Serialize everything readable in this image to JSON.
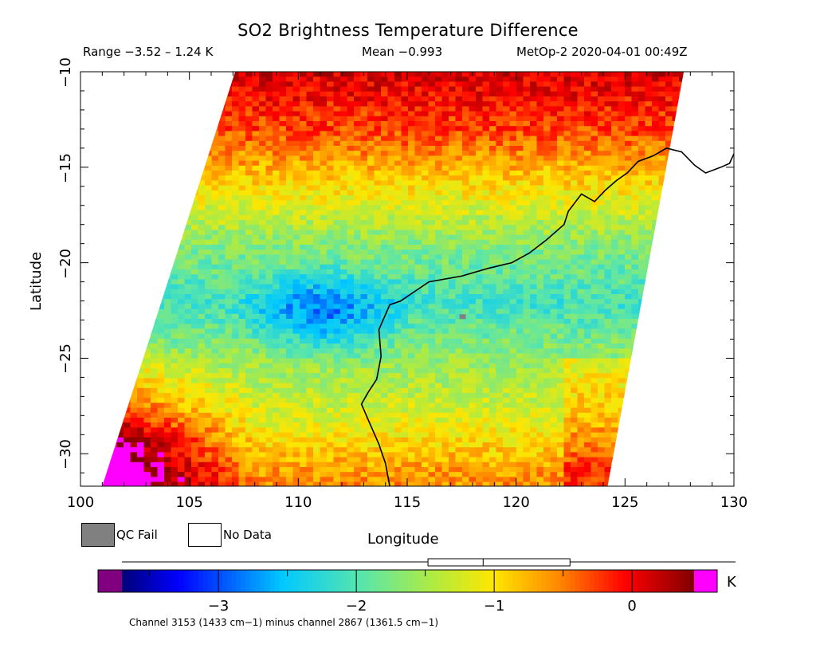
{
  "header": {
    "title": "SO2 Brightness Temperature Difference",
    "range_text": "Range −3.52 – 1.24 K",
    "mean_text": "Mean −0.993",
    "satellite_text": "MetOp-2 2020-04-01 00:49Z"
  },
  "legend": {
    "qc_fail_label": "QC Fail",
    "no_data_label": "No Data",
    "qc_fail_color": "#808080",
    "no_data_color": "#ffffff"
  },
  "colorbar": {
    "unit": "K",
    "ticks": [
      -3,
      -2,
      -1,
      0
    ],
    "tick_labels": [
      "−3",
      "−2",
      "−1",
      "0"
    ],
    "vmin": -3.7,
    "vmax": 0.45,
    "underflow_color": "#800080",
    "overflow_color": "#ff00ff",
    "stats_box": {
      "whisker_low": -3.52,
      "q1": -1.48,
      "median": -1.08,
      "q3": -0.45,
      "whisker_high": 1.24
    }
  },
  "footnote": "Channel 3153 (1433 cm−1) minus channel 2867 (1361.5 cm−1)",
  "chart_data": {
    "type": "heatmap",
    "xlabel": "Longitude",
    "ylabel": "Latitude",
    "xlim": [
      100,
      130
    ],
    "ylim": [
      -31.7,
      -10
    ],
    "x_ticks": [
      100,
      105,
      110,
      115,
      120,
      125,
      130
    ],
    "y_ticks": [
      -10,
      -15,
      -20,
      -25,
      -30
    ],
    "x_tick_labels": [
      "100",
      "105",
      "110",
      "115",
      "120",
      "125",
      "130"
    ],
    "y_tick_labels": [
      "−10",
      "−15",
      "−20",
      "−25",
      "−30"
    ],
    "swath_corners": {
      "top_left": [
        107.1,
        -10
      ],
      "top_right": [
        127.7,
        -10
      ],
      "bottom_right": [
        124.2,
        -31.7
      ],
      "bottom_left": [
        101.0,
        -31.7
      ]
    },
    "value_range": [
      -3.52,
      1.24
    ],
    "mean": -0.993,
    "field_description_levels": [
      {
        "lat": -10,
        "value": 0.1
      },
      {
        "lat": -13,
        "value": -0.3
      },
      {
        "lat": -16,
        "value": -1.0
      },
      {
        "lat": -19,
        "value": -1.7
      },
      {
        "lat": -22,
        "value": -2.1
      },
      {
        "lat": -25,
        "value": -1.6
      },
      {
        "lat": -28,
        "value": -1.2
      },
      {
        "lat": -31,
        "value": -0.6
      }
    ],
    "coastline": [
      [
        114.2,
        -31.7
      ],
      [
        114.0,
        -30.5
      ],
      [
        113.7,
        -29.5
      ],
      [
        113.2,
        -28.2
      ],
      [
        112.9,
        -27.4
      ],
      [
        113.2,
        -26.8
      ],
      [
        113.6,
        -26.1
      ],
      [
        113.8,
        -24.9
      ],
      [
        113.7,
        -23.5
      ],
      [
        114.2,
        -22.2
      ],
      [
        114.7,
        -22.0
      ],
      [
        116.0,
        -21.0
      ],
      [
        117.5,
        -20.7
      ],
      [
        118.7,
        -20.3
      ],
      [
        119.8,
        -20.0
      ],
      [
        120.6,
        -19.5
      ],
      [
        121.4,
        -18.8
      ],
      [
        122.2,
        -18.0
      ],
      [
        122.4,
        -17.3
      ],
      [
        123.0,
        -16.4
      ],
      [
        123.6,
        -16.8
      ],
      [
        124.1,
        -16.2
      ],
      [
        124.6,
        -15.7
      ],
      [
        125.1,
        -15.3
      ],
      [
        125.6,
        -14.7
      ],
      [
        126.3,
        -14.4
      ],
      [
        126.9,
        -14.0
      ],
      [
        127.6,
        -14.2
      ],
      [
        128.2,
        -14.9
      ],
      [
        128.7,
        -15.3
      ],
      [
        129.4,
        -15.0
      ],
      [
        129.8,
        -14.8
      ],
      [
        130.0,
        -14.3
      ]
    ]
  }
}
